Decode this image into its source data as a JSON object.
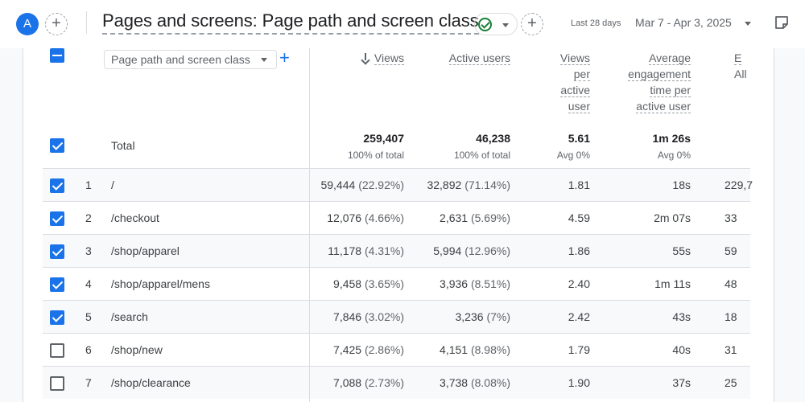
{
  "header": {
    "avatar_letter": "A",
    "add_symbol": "+",
    "report_title": "Pages and screens: Page path and screen class",
    "date_label": "Last 28 days",
    "date_range": "Mar 7 - Apr 3, 2025"
  },
  "dimension": {
    "selector_label": "Page path and screen class",
    "add_symbol": "+"
  },
  "columns": {
    "views": "Views",
    "active_users": "Active users",
    "views_per_user": [
      "Views",
      "per",
      "active",
      "user"
    ],
    "avg_engagement": [
      "Average",
      "engagement",
      "time per",
      "active user"
    ],
    "events_partial": "E",
    "events_sub_partial": "All"
  },
  "totals": {
    "label": "Total",
    "views": "259,407",
    "views_sub": "100% of total",
    "active_users": "46,238",
    "active_users_sub": "100% of total",
    "views_per_user": "5.61",
    "views_per_user_sub": "Avg 0%",
    "avg_engagement": "1m 26s",
    "avg_engagement_sub": "Avg 0%"
  },
  "rows": [
    {
      "rank": "1",
      "path": "/",
      "views": "59,444",
      "views_pct": "(22.92%)",
      "users": "32,892",
      "users_pct": "(71.14%)",
      "vpu": "1.81",
      "time": "18s",
      "events": "229,7",
      "checked": true
    },
    {
      "rank": "2",
      "path": "/checkout",
      "views": "12,076",
      "views_pct": "(4.66%)",
      "users": "2,631",
      "users_pct": "(5.69%)",
      "vpu": "4.59",
      "time": "2m 07s",
      "events": "33",
      "checked": true
    },
    {
      "rank": "3",
      "path": "/shop/apparel",
      "views": "11,178",
      "views_pct": "(4.31%)",
      "users": "5,994",
      "users_pct": "(12.96%)",
      "vpu": "1.86",
      "time": "55s",
      "events": "59",
      "checked": true
    },
    {
      "rank": "4",
      "path": "/shop/apparel/mens",
      "views": "9,458",
      "views_pct": "(3.65%)",
      "users": "3,936",
      "users_pct": "(8.51%)",
      "vpu": "2.40",
      "time": "1m 11s",
      "events": "48",
      "checked": true
    },
    {
      "rank": "5",
      "path": "/search",
      "views": "7,846",
      "views_pct": "(3.02%)",
      "users": "3,236",
      "users_pct": "(7%)",
      "vpu": "2.42",
      "time": "43s",
      "events": "18",
      "checked": true
    },
    {
      "rank": "6",
      "path": "/shop/new",
      "views": "7,425",
      "views_pct": "(2.86%)",
      "users": "4,151",
      "users_pct": "(8.98%)",
      "vpu": "1.79",
      "time": "40s",
      "events": "31",
      "checked": false
    },
    {
      "rank": "7",
      "path": "/shop/clearance",
      "views": "7,088",
      "views_pct": "(2.73%)",
      "users": "3,738",
      "users_pct": "(8.08%)",
      "vpu": "1.90",
      "time": "37s",
      "events": "25",
      "checked": false
    }
  ],
  "colors": {
    "accent": "#1a73e8",
    "success": "#188038",
    "text_primary": "#202124",
    "text_secondary": "#5f6368",
    "divider": "#dadce0",
    "row_alt": "#f8f9fa"
  },
  "icons": {
    "status": "check-circle-icon",
    "add": "add-circle-icon",
    "note": "note-icon",
    "sort": "arrow-down-icon"
  }
}
